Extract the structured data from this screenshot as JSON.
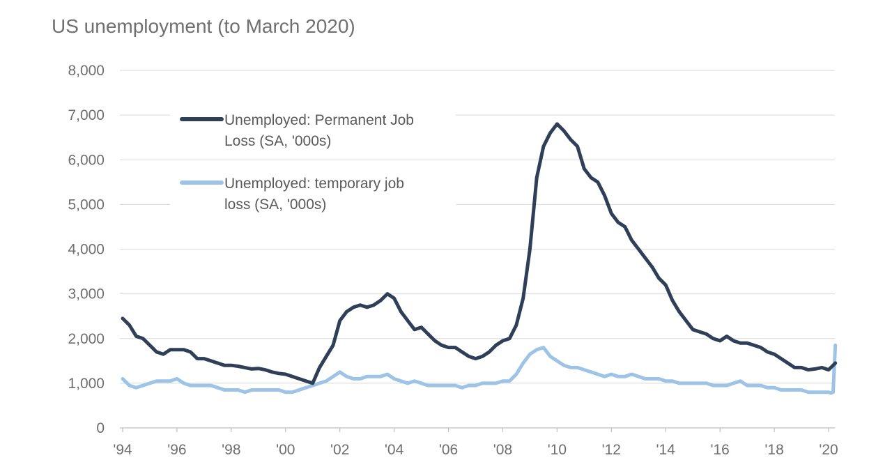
{
  "chart_data": {
    "type": "line",
    "title": "US unemployment (to March 2020)",
    "xlabel": "",
    "ylabel": "",
    "ylim": [
      0,
      8000
    ],
    "xlim": [
      1994.0,
      2020.25
    ],
    "grid": true,
    "legend_position": "top-left",
    "y_ticks": [
      {
        "value": 0,
        "label": "0"
      },
      {
        "value": 1000,
        "label": "1,000"
      },
      {
        "value": 2000,
        "label": "2,000"
      },
      {
        "value": 3000,
        "label": "3,000"
      },
      {
        "value": 4000,
        "label": "4,000"
      },
      {
        "value": 5000,
        "label": "5,000"
      },
      {
        "value": 6000,
        "label": "6,000"
      },
      {
        "value": 7000,
        "label": "7,000"
      },
      {
        "value": 8000,
        "label": "8,000"
      }
    ],
    "x_ticks": [
      {
        "value": 1994,
        "label": "'94"
      },
      {
        "value": 1996,
        "label": "'96"
      },
      {
        "value": 1998,
        "label": "'98"
      },
      {
        "value": 2000,
        "label": "'00"
      },
      {
        "value": 2002,
        "label": "'02"
      },
      {
        "value": 2004,
        "label": "'04"
      },
      {
        "value": 2006,
        "label": "'06"
      },
      {
        "value": 2008,
        "label": "'08"
      },
      {
        "value": 2010,
        "label": "'10"
      },
      {
        "value": 2012,
        "label": "'12"
      },
      {
        "value": 2014,
        "label": "'14"
      },
      {
        "value": 2016,
        "label": "'16"
      },
      {
        "value": 2018,
        "label": "'18"
      },
      {
        "value": 2020,
        "label": "'20"
      }
    ],
    "series": [
      {
        "name": "Unemployed: Permanent Job Loss (SA, '000s)",
        "legend_lines": [
          "Unemployed: Permanent Job",
          "Loss (SA, '000s)"
        ],
        "color": "#2e3f57",
        "x": [
          1994.0,
          1994.25,
          1994.5,
          1994.75,
          1995.0,
          1995.25,
          1995.5,
          1995.75,
          1996.0,
          1996.25,
          1996.5,
          1996.75,
          1997.0,
          1997.25,
          1997.5,
          1997.75,
          1998.0,
          1998.25,
          1998.5,
          1998.75,
          1999.0,
          1999.25,
          1999.5,
          1999.75,
          2000.0,
          2000.25,
          2000.5,
          2000.75,
          2001.0,
          2001.25,
          2001.5,
          2001.75,
          2002.0,
          2002.25,
          2002.5,
          2002.75,
          2003.0,
          2003.25,
          2003.5,
          2003.75,
          2004.0,
          2004.25,
          2004.5,
          2004.75,
          2005.0,
          2005.25,
          2005.5,
          2005.75,
          2006.0,
          2006.25,
          2006.5,
          2006.75,
          2007.0,
          2007.25,
          2007.5,
          2007.75,
          2008.0,
          2008.25,
          2008.5,
          2008.75,
          2009.0,
          2009.25,
          2009.5,
          2009.75,
          2010.0,
          2010.25,
          2010.5,
          2010.75,
          2011.0,
          2011.25,
          2011.5,
          2011.75,
          2012.0,
          2012.25,
          2012.5,
          2012.75,
          2013.0,
          2013.25,
          2013.5,
          2013.75,
          2014.0,
          2014.25,
          2014.5,
          2014.75,
          2015.0,
          2015.25,
          2015.5,
          2015.75,
          2016.0,
          2016.25,
          2016.5,
          2016.75,
          2017.0,
          2017.25,
          2017.5,
          2017.75,
          2018.0,
          2018.25,
          2018.5,
          2018.75,
          2019.0,
          2019.25,
          2019.5,
          2019.75,
          2020.0,
          2020.25
        ],
        "values": [
          2450,
          2300,
          2050,
          2000,
          1850,
          1700,
          1650,
          1750,
          1750,
          1750,
          1700,
          1550,
          1550,
          1500,
          1450,
          1400,
          1400,
          1380,
          1350,
          1320,
          1330,
          1300,
          1250,
          1220,
          1200,
          1150,
          1100,
          1050,
          1000,
          1350,
          1600,
          1850,
          2400,
          2600,
          2700,
          2750,
          2700,
          2750,
          2850,
          3000,
          2900,
          2600,
          2400,
          2200,
          2250,
          2100,
          1950,
          1850,
          1800,
          1800,
          1700,
          1600,
          1550,
          1600,
          1700,
          1850,
          1950,
          2000,
          2300,
          2900,
          4000,
          5600,
          6300,
          6600,
          6800,
          6650,
          6450,
          6300,
          5800,
          5600,
          5500,
          5200,
          4800,
          4600,
          4500,
          4200,
          4000,
          3800,
          3600,
          3350,
          3200,
          2850,
          2600,
          2400,
          2200,
          2150,
          2100,
          2000,
          1950,
          2050,
          1950,
          1900,
          1900,
          1850,
          1800,
          1700,
          1650,
          1550,
          1450,
          1350,
          1350,
          1300,
          1320,
          1350,
          1300,
          1450
        ]
      },
      {
        "name": "Unemployed: temporary job loss (SA, '000s)",
        "legend_lines": [
          "Unemployed: temporary job",
          "loss (SA, '000s)"
        ],
        "color": "#9dc3e6",
        "x": [
          1994.0,
          1994.25,
          1994.5,
          1994.75,
          1995.0,
          1995.25,
          1995.5,
          1995.75,
          1996.0,
          1996.25,
          1996.5,
          1996.75,
          1997.0,
          1997.25,
          1997.5,
          1997.75,
          1998.0,
          1998.25,
          1998.5,
          1998.75,
          1999.0,
          1999.25,
          1999.5,
          1999.75,
          2000.0,
          2000.25,
          2000.5,
          2000.75,
          2001.0,
          2001.25,
          2001.5,
          2001.75,
          2002.0,
          2002.25,
          2002.5,
          2002.75,
          2003.0,
          2003.25,
          2003.5,
          2003.75,
          2004.0,
          2004.25,
          2004.5,
          2004.75,
          2005.0,
          2005.25,
          2005.5,
          2005.75,
          2006.0,
          2006.25,
          2006.5,
          2006.75,
          2007.0,
          2007.25,
          2007.5,
          2007.75,
          2008.0,
          2008.25,
          2008.5,
          2008.75,
          2009.0,
          2009.25,
          2009.5,
          2009.75,
          2010.0,
          2010.25,
          2010.5,
          2010.75,
          2011.0,
          2011.25,
          2011.5,
          2011.75,
          2012.0,
          2012.25,
          2012.5,
          2012.75,
          2013.0,
          2013.25,
          2013.5,
          2013.75,
          2014.0,
          2014.25,
          2014.5,
          2014.75,
          2015.0,
          2015.25,
          2015.5,
          2015.75,
          2016.0,
          2016.25,
          2016.5,
          2016.75,
          2017.0,
          2017.25,
          2017.5,
          2017.75,
          2018.0,
          2018.25,
          2018.5,
          2018.75,
          2019.0,
          2019.25,
          2019.5,
          2019.75,
          2020.0,
          2020.083,
          2020.167,
          2020.25
        ],
        "values": [
          1100,
          950,
          900,
          950,
          1000,
          1050,
          1050,
          1050,
          1100,
          1000,
          950,
          950,
          950,
          950,
          900,
          850,
          850,
          850,
          800,
          850,
          850,
          850,
          850,
          850,
          800,
          800,
          850,
          900,
          950,
          1000,
          1050,
          1150,
          1250,
          1150,
          1100,
          1100,
          1150,
          1150,
          1150,
          1200,
          1100,
          1050,
          1000,
          1050,
          1000,
          950,
          950,
          950,
          950,
          950,
          900,
          950,
          950,
          1000,
          1000,
          1000,
          1050,
          1050,
          1200,
          1450,
          1650,
          1750,
          1800,
          1600,
          1500,
          1400,
          1350,
          1350,
          1300,
          1250,
          1200,
          1150,
          1200,
          1150,
          1150,
          1200,
          1150,
          1100,
          1100,
          1100,
          1050,
          1050,
          1000,
          1000,
          1000,
          1000,
          1000,
          950,
          950,
          950,
          1000,
          1050,
          950,
          950,
          950,
          900,
          900,
          850,
          850,
          850,
          850,
          800,
          800,
          800,
          800,
          780,
          800,
          1850
        ]
      }
    ]
  }
}
